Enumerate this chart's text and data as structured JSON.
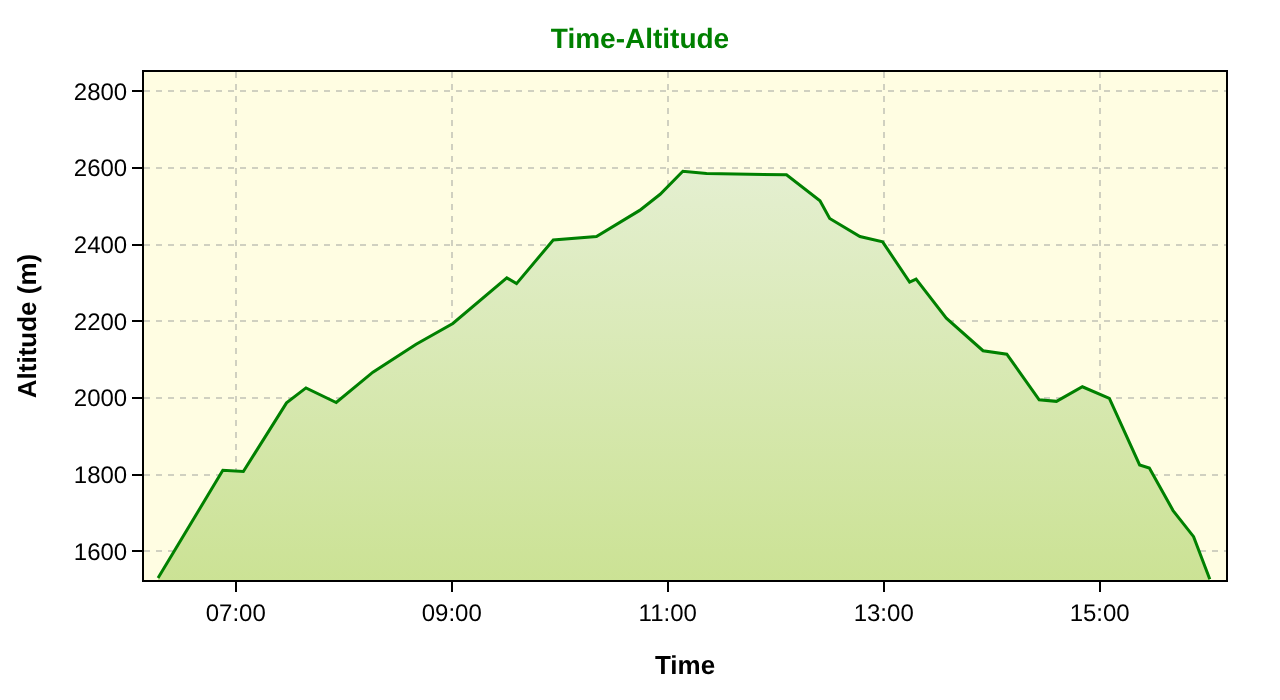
{
  "chart_data": {
    "type": "area",
    "title": "Time-Altitude",
    "xlabel": "Time",
    "ylabel": "Altitude (m)",
    "x": [
      6.28,
      6.88,
      7.07,
      7.47,
      7.65,
      7.93,
      8.27,
      8.67,
      9.01,
      9.51,
      9.6,
      9.94,
      10.34,
      10.74,
      10.93,
      11.14,
      11.36,
      12.1,
      12.41,
      12.5,
      12.78,
      12.99,
      13.24,
      13.3,
      13.58,
      13.92,
      14.14,
      14.44,
      14.6,
      14.84,
      15.09,
      15.37,
      15.46,
      15.68,
      15.87,
      16.02
    ],
    "series": [
      {
        "color": "#008000",
        "values": [
          1530,
          1811,
          1808,
          1987,
          2026,
          1988,
          2067,
          2140,
          2194,
          2313,
          2298,
          2412,
          2421,
          2489,
          2531,
          2591,
          2585,
          2582,
          2514,
          2468,
          2421,
          2407,
          2302,
          2310,
          2208,
          2123,
          2114,
          1995,
          1991,
          2029,
          1999,
          1825,
          1817,
          1706,
          1638,
          1527
        ]
      }
    ],
    "xlim": [
      6.15,
      16.17
    ],
    "ylim": [
      1525,
      2850
    ],
    "xticks": [
      {
        "value": 7,
        "label": "07:00"
      },
      {
        "value": 9,
        "label": "09:00"
      },
      {
        "value": 11,
        "label": "11:00"
      },
      {
        "value": 13,
        "label": "13:00"
      },
      {
        "value": 15,
        "label": "15:00"
      }
    ],
    "yticks": [
      1600,
      1800,
      2000,
      2200,
      2400,
      2600,
      2800
    ],
    "grid": true,
    "legend": false,
    "marker": "none",
    "line_style": "solid"
  }
}
